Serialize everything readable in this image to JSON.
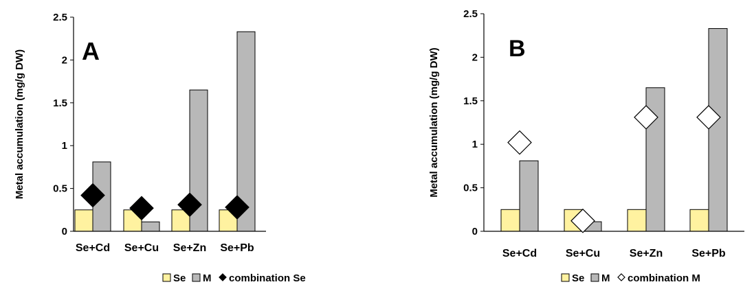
{
  "colors": {
    "se_bar": "#FFF2A0",
    "m_bar": "#B8B8B8",
    "outline": "#000000",
    "combination_se_marker": "#000000",
    "combination_m_marker": "#FFFFFF"
  },
  "chart_data": [
    {
      "type": "bar",
      "panel_label": "A",
      "ylabel": "Metal accumulation (mg/g DW)",
      "xlabel": "",
      "ylim": [
        0,
        2.5
      ],
      "yticks": [
        0,
        0.5,
        1,
        1.5,
        2,
        2.5
      ],
      "ytick_labels": [
        "0",
        "0.5",
        "1",
        "1.5",
        "2",
        "2.5"
      ],
      "categories": [
        "Se+Cd",
        "Se+Cu",
        "Se+Zn",
        "Se+Pb"
      ],
      "series": [
        {
          "name": "Se",
          "kind": "bar",
          "values": [
            0.25,
            0.25,
            0.25,
            0.25
          ]
        },
        {
          "name": "M",
          "kind": "bar",
          "values": [
            0.81,
            0.11,
            1.65,
            2.33
          ]
        },
        {
          "name": "combination Se",
          "kind": "marker",
          "marker": "filled-diamond",
          "values": [
            0.42,
            0.27,
            0.31,
            0.28
          ]
        }
      ],
      "legend": {
        "placement": "bottom",
        "items": [
          "Se",
          "M",
          "combination Se"
        ]
      },
      "grid": false
    },
    {
      "type": "bar",
      "panel_label": "B",
      "ylabel": "Metal accumulation (mg/g DW)",
      "xlabel": "",
      "ylim": [
        0,
        2.5
      ],
      "yticks": [
        0,
        0.5,
        1,
        1.5,
        2,
        2.5
      ],
      "ytick_labels": [
        "0",
        "0.5",
        "1",
        "1.5",
        "2",
        "2.5"
      ],
      "categories": [
        "Se+Cd",
        "Se+Cu",
        "Se+Zn",
        "Se+Pb"
      ],
      "series": [
        {
          "name": "Se",
          "kind": "bar",
          "values": [
            0.25,
            0.25,
            0.25,
            0.25
          ]
        },
        {
          "name": "M",
          "kind": "bar",
          "values": [
            0.81,
            0.11,
            1.65,
            2.33
          ]
        },
        {
          "name": "combination M",
          "kind": "marker",
          "marker": "hollow-diamond",
          "values": [
            1.02,
            0.12,
            1.31,
            1.31
          ]
        }
      ],
      "legend": {
        "placement": "bottom",
        "items": [
          "Se",
          "M",
          "combination M"
        ]
      },
      "grid": false
    }
  ]
}
